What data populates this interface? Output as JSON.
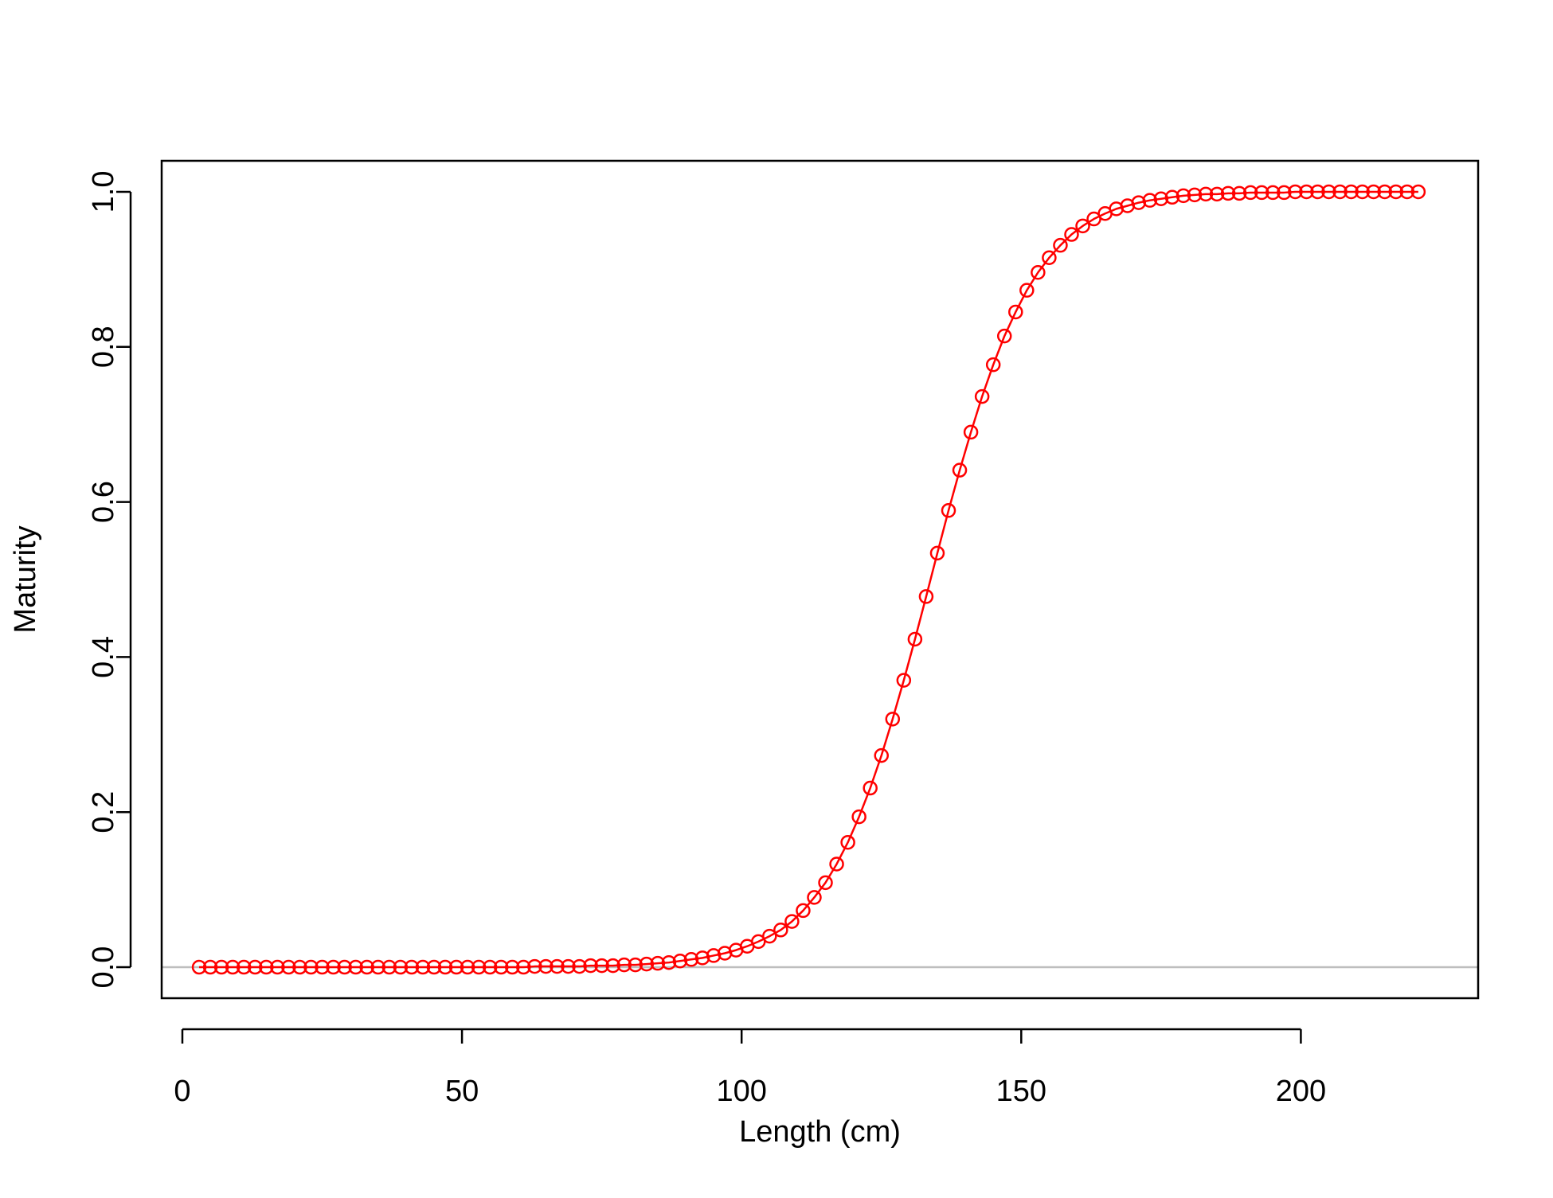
{
  "chart_data": {
    "type": "line",
    "title": "",
    "xlabel": "Length (cm)",
    "ylabel": "Maturity",
    "xlim": [
      -3.7,
      231.7
    ],
    "ylim": [
      -0.04,
      1.04
    ],
    "x_ticks": [
      0,
      50,
      100,
      150,
      200
    ],
    "y_ticks": [
      0.0,
      0.2,
      0.4,
      0.6,
      0.8,
      1.0
    ],
    "x_tick_labels": [
      "0",
      "50",
      "100",
      "150",
      "200"
    ],
    "y_tick_labels": [
      "0.0",
      "0.2",
      "0.4",
      "0.6",
      "0.8",
      "1.0"
    ],
    "grid": false,
    "legend": "none",
    "reference_line": {
      "y": 0,
      "color": "#bebebe"
    },
    "series": [
      {
        "color": "#ff0000",
        "marker": "open-circle",
        "style": "line-and-points",
        "x": [
          3,
          5,
          7,
          9,
          11,
          13,
          15,
          17,
          19,
          21,
          23,
          25,
          27,
          29,
          31,
          33,
          35,
          37,
          39,
          41,
          43,
          45,
          47,
          49,
          51,
          53,
          55,
          57,
          59,
          61,
          63,
          65,
          67,
          69,
          71,
          73,
          75,
          77,
          79,
          81,
          83,
          85,
          87,
          89,
          91,
          93,
          95,
          97,
          99,
          101,
          103,
          105,
          107,
          109,
          111,
          113,
          115,
          117,
          119,
          121,
          123,
          125,
          127,
          129,
          131,
          133,
          135,
          137,
          139,
          141,
          143,
          145,
          147,
          149,
          151,
          153,
          155,
          157,
          159,
          161,
          163,
          165,
          167,
          169,
          171,
          173,
          175,
          177,
          179,
          181,
          183,
          185,
          187,
          189,
          191,
          193,
          195,
          197,
          199,
          201,
          203,
          205,
          207,
          209,
          211,
          213,
          215,
          217,
          219,
          221
        ],
        "y": [
          0.0,
          0.0,
          0.0,
          0.0,
          0.0,
          0.0,
          0.0,
          0.0,
          0.0,
          0.0,
          0.0,
          0.0,
          0.0,
          0.0,
          0.0,
          0.0,
          0.0,
          0.0,
          0.0,
          0.0,
          0.0,
          0.0,
          0.0,
          0.0,
          0.0,
          0.0,
          0.0,
          0.0,
          0.0,
          0.0,
          0.001,
          0.001,
          0.001,
          0.001,
          0.001,
          0.002,
          0.002,
          0.002,
          0.003,
          0.003,
          0.004,
          0.005,
          0.006,
          0.008,
          0.01,
          0.012,
          0.015,
          0.018,
          0.022,
          0.027,
          0.033,
          0.04,
          0.048,
          0.059,
          0.073,
          0.09,
          0.109,
          0.133,
          0.161,
          0.194,
          0.231,
          0.273,
          0.32,
          0.37,
          0.423,
          0.478,
          0.534,
          0.589,
          0.641,
          0.69,
          0.736,
          0.777,
          0.814,
          0.845,
          0.873,
          0.896,
          0.915,
          0.931,
          0.945,
          0.956,
          0.965,
          0.972,
          0.978,
          0.982,
          0.986,
          0.989,
          0.991,
          0.993,
          0.995,
          0.996,
          0.997,
          0.997,
          0.998,
          0.998,
          0.999,
          0.999,
          0.999,
          0.999,
          1.0,
          1.0,
          1.0,
          1.0,
          1.0,
          1.0,
          1.0,
          1.0,
          1.0,
          1.0,
          1.0,
          1.0
        ]
      }
    ]
  }
}
